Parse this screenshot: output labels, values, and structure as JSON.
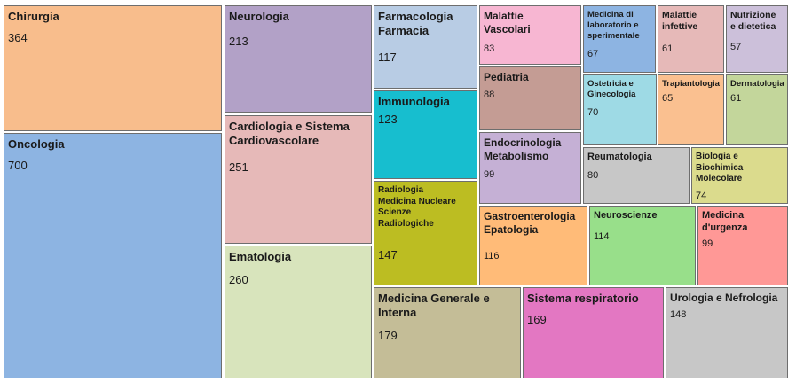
{
  "chart_data": {
    "type": "treemap",
    "items": [
      {
        "label": "Chirurgia",
        "value": 364,
        "color": "#f8bd8c"
      },
      {
        "label": "Oncologia",
        "value": 700,
        "color": "#8db4e2"
      },
      {
        "label": "Neurologia",
        "value": 213,
        "color": "#b2a1c7"
      },
      {
        "label": "Cardiologia e Sistema\nCardiovascolare",
        "value": 251,
        "color": "#e6b9b8"
      },
      {
        "label": "Ematologia",
        "value": 260,
        "color": "#d8e4bc"
      },
      {
        "label": "Farmacologia\nFarmacia",
        "value": 117,
        "color": "#b8cce4"
      },
      {
        "label": "Immunologia",
        "value": 123,
        "color": "#17becf"
      },
      {
        "label": "Radiologia\nMedicina Nucleare\nScienze\nRadiologiche",
        "value": 147,
        "color": "#bcbd22"
      },
      {
        "label": "Medicina Generale e\nInterna",
        "value": 179,
        "color": "#c4bd97"
      },
      {
        "label": "Malattie\nVascolari",
        "value": 83,
        "color": "#f7b6d2"
      },
      {
        "label": "Pediatria",
        "value": 88,
        "color": "#c49c94"
      },
      {
        "label": "Endocrinologia\nMetabolismo",
        "value": 99,
        "color": "#c5b0d5"
      },
      {
        "label": "Gastroenterologia\nEpatologia",
        "value": 116,
        "color": "#ffbb78"
      },
      {
        "label": "Sistema respiratorio",
        "value": 169,
        "color": "#e377c2"
      },
      {
        "label": "Medicina di\nlaboratorio e\nsperimentale",
        "value": 67,
        "color": "#8db4e2"
      },
      {
        "label": "Malattie\ninfettive",
        "value": 61,
        "color": "#e6b9b8"
      },
      {
        "label": "Nutrizione\ne dietetica",
        "value": 57,
        "color": "#ccc0da"
      },
      {
        "label": "Ostetricia e\nGinecologia",
        "value": 70,
        "color": "#9edae5"
      },
      {
        "label": "Trapiantologia",
        "value": 65,
        "color": "#fac090"
      },
      {
        "label": "Dermatologia",
        "value": 61,
        "color": "#c3d69b"
      },
      {
        "label": "Reumatologia",
        "value": 80,
        "color": "#c7c7c7"
      },
      {
        "label": "Biologia e\nBiochimica\nMolecolare",
        "value": 74,
        "color": "#dbdb8d"
      },
      {
        "label": "Neuroscienze",
        "value": 114,
        "color": "#98df8a"
      },
      {
        "label": "Medicina\nd'urgenza",
        "value": 99,
        "color": "#ff9896"
      },
      {
        "label": "Urologia e Nefrologia",
        "value": 148,
        "color": "#c7c7c7"
      }
    ]
  }
}
